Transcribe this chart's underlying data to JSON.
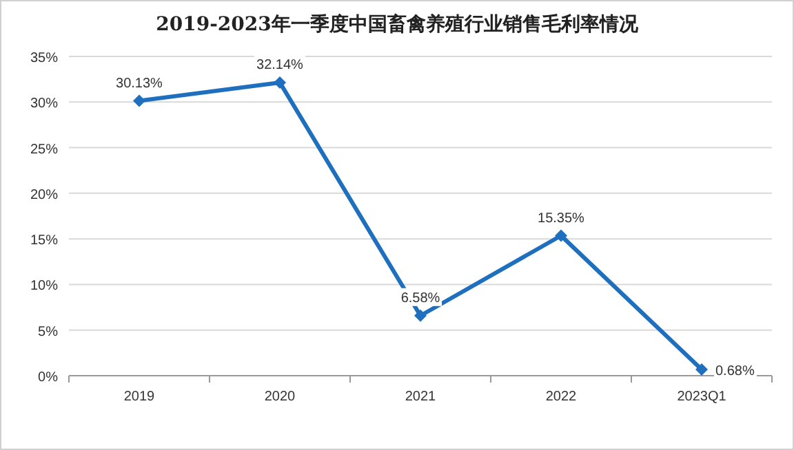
{
  "chart_data": {
    "type": "line",
    "title": "2019-2023年一季度中国畜禽养殖行业销售毛利率情况",
    "categories": [
      "2019",
      "2020",
      "2021",
      "2022",
      "2023Q1"
    ],
    "series": [
      {
        "color": "#1f6fbf",
        "values": [
          30.13,
          32.14,
          6.58,
          15.35,
          0.68
        ],
        "value_labels": [
          "30.13%",
          "32.14%",
          "6.58%",
          "15.35%",
          "0.68%"
        ]
      }
    ],
    "ylim": [
      0,
      35
    ],
    "yticks": [
      {
        "value": 0,
        "label": "0%"
      },
      {
        "value": 5,
        "label": "5%"
      },
      {
        "value": 10,
        "label": "10%"
      },
      {
        "value": 15,
        "label": "15%"
      },
      {
        "value": 20,
        "label": "20%"
      },
      {
        "value": 25,
        "label": "25%"
      },
      {
        "value": 30,
        "label": "30%"
      },
      {
        "value": 35,
        "label": "35%"
      }
    ],
    "grid": "y",
    "marker": "diamond",
    "line_style": "solid"
  }
}
